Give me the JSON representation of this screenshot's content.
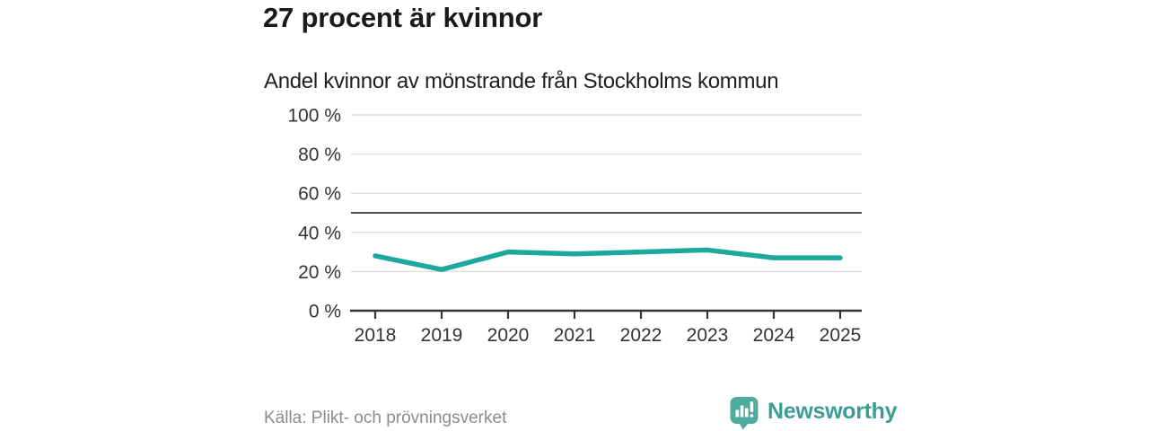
{
  "header": {
    "title": "27 procent är kvinnor",
    "subtitle": "Andel kvinnor av mönstrande från Stockholms kommun"
  },
  "chart_data": {
    "type": "line",
    "x": [
      "2018",
      "2019",
      "2020",
      "2021",
      "2022",
      "2023",
      "2024",
      "2025"
    ],
    "series": [
      {
        "name": "Andel kvinnor av mönstrande",
        "values": [
          28,
          21,
          30,
          29,
          30,
          31,
          27,
          27
        ]
      }
    ],
    "ylim": [
      0,
      100
    ],
    "yticks": [
      0,
      20,
      40,
      60,
      80,
      100
    ],
    "ytick_suffix": " %",
    "reference_line": 50,
    "grid": true,
    "legend": "none",
    "colors": {
      "line": "#1ca89c",
      "axis": "#333333",
      "gridline": "#dddddd",
      "reference_line": "#4d4d4d",
      "tick_label": "#333333"
    }
  },
  "footer": {
    "source": "Källa: Plikt- och prövningsverket",
    "brand": "Newsworthy",
    "brand_color": "#3a9e94",
    "logo_icon": "bar-chart-speech-bubble",
    "logo_color": "#4dac9e"
  }
}
